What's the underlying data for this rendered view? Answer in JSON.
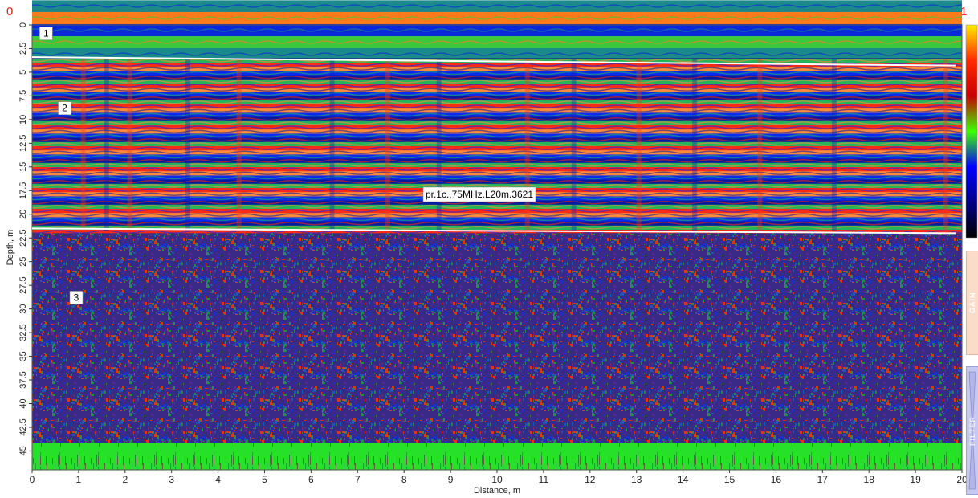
{
  "corners": {
    "left": "0",
    "right": "1"
  },
  "chart_data": {
    "type": "heatmap",
    "title": "pr.1c.,75MHz.L20m.3621",
    "xlabel": "Distance, m",
    "ylabel": "Depth, m",
    "xlim": [
      0,
      20
    ],
    "ylim": [
      0,
      47
    ],
    "y_inverted": true,
    "x_ticks": [
      "0",
      "1",
      "2",
      "3",
      "4",
      "5",
      "6",
      "7",
      "8",
      "9",
      "10",
      "11",
      "12",
      "13",
      "14",
      "15",
      "16",
      "17",
      "18",
      "19",
      "20"
    ],
    "y_ticks": [
      "0",
      "2.5",
      "5",
      "7.5",
      "10",
      "12.5",
      "15",
      "17.5",
      "20",
      "22.5",
      "25",
      "27.5",
      "30",
      "32.5",
      "35",
      "37.5",
      "40",
      "42.5",
      "45"
    ],
    "layer_labels": [
      {
        "text": "1",
        "x": 0.3,
        "y": 0.9
      },
      {
        "text": "2",
        "x": 0.7,
        "y": 8.8
      },
      {
        "text": "3",
        "x": 0.95,
        "y": 28.8
      }
    ],
    "boundaries": [
      {
        "name": "boundary-1",
        "y_start": 3.4,
        "y_end": 4.3
      },
      {
        "name": "boundary-2",
        "y_start": 21.5,
        "y_end": 22.0
      }
    ],
    "colorscale": [
      "#ffeb00",
      "#ff2a00",
      "#c80000",
      "#3cff00",
      "#0000ff",
      "#000088",
      "#000000"
    ],
    "layer_colors": {
      "air": [
        "#1a8a8a",
        "#ff7a1a",
        "#0a28d8",
        "#3cc83c"
      ],
      "banded": [
        "#ff2a14",
        "#ff8a3a",
        "#0a2af0",
        "#061a9c",
        "#24b45a"
      ],
      "noise": [
        "#d8381c",
        "#1a30c8",
        "#2a8a4a",
        "#5a2a8a",
        "#1c58b0"
      ],
      "bottom": "#27e02a"
    }
  },
  "panels": {
    "gain_label": "GAIN",
    "filter_label": "FILTER"
  }
}
